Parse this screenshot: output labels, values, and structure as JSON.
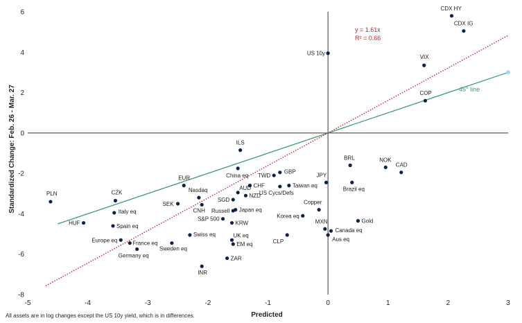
{
  "chart_data": {
    "type": "scatter",
    "title": "",
    "xlabel": "Predicted",
    "ylabel": "Standardized Change: Feb. 26 - Mar. 27",
    "xlim": [
      -5,
      3
    ],
    "ylim": [
      -8,
      6
    ],
    "xticks": [
      -5,
      -4,
      -3,
      -2,
      -1,
      0,
      1,
      2,
      3
    ],
    "yticks": [
      -8,
      -6,
      -4,
      -2,
      0,
      2,
      4,
      6
    ],
    "grid": false,
    "point_color": "#0b2346",
    "points": [
      {
        "label": "CDX HY",
        "x": 2.06,
        "y": 5.8
      },
      {
        "label": "CDX IG",
        "x": 2.26,
        "y": 5.05
      },
      {
        "label": "US 10y",
        "x": 0.0,
        "y": 3.95
      },
      {
        "label": "VIX",
        "x": 1.6,
        "y": 3.35
      },
      {
        "label": "COP",
        "x": 1.62,
        "y": 1.6
      },
      {
        "label": "ILS",
        "x": -1.46,
        "y": -0.85
      },
      {
        "label": "China eq",
        "x": -1.5,
        "y": -1.75
      },
      {
        "label": "BRL",
        "x": 0.37,
        "y": -1.6
      },
      {
        "label": "NOK",
        "x": 0.96,
        "y": -1.7
      },
      {
        "label": "CAD",
        "x": 1.22,
        "y": -1.95
      },
      {
        "label": "GBP",
        "x": -0.8,
        "y": -1.95
      },
      {
        "label": "TWD",
        "x": -0.9,
        "y": -2.1
      },
      {
        "label": "JPY",
        "x": -0.03,
        "y": -2.45
      },
      {
        "label": "Brazil eq",
        "x": 0.4,
        "y": -2.45
      },
      {
        "label": "EUR",
        "x": -2.4,
        "y": -2.6
      },
      {
        "label": "CHF",
        "x": -1.3,
        "y": -2.6
      },
      {
        "label": "Taiwan eq",
        "x": -0.65,
        "y": -2.6
      },
      {
        "label": "US Cycs/Defs",
        "x": -0.8,
        "y": -2.65
      },
      {
        "label": "AUD",
        "x": -1.5,
        "y": -2.95
      },
      {
        "label": "Nasdaq",
        "x": -2.15,
        "y": -3.2
      },
      {
        "label": "SGD",
        "x": -1.58,
        "y": -3.3
      },
      {
        "label": "NZD",
        "x": -1.37,
        "y": -3.1
      },
      {
        "label": "PLN",
        "x": -4.62,
        "y": -3.4
      },
      {
        "label": "CZK",
        "x": -3.54,
        "y": -3.35
      },
      {
        "label": "SEK",
        "x": -2.5,
        "y": -3.5
      },
      {
        "label": "CNH",
        "x": -2.1,
        "y": -3.55
      },
      {
        "label": "Russell",
        "x": -1.58,
        "y": -3.85
      },
      {
        "label": "Japan eq",
        "x": -1.54,
        "y": -3.8
      },
      {
        "label": "Copper",
        "x": -0.15,
        "y": -3.8
      },
      {
        "label": "Italy eq",
        "x": -3.56,
        "y": -3.95
      },
      {
        "label": "Korea eq",
        "x": -0.42,
        "y": -4.1
      },
      {
        "label": "S&P 500",
        "x": -1.75,
        "y": -4.25
      },
      {
        "label": "KRW",
        "x": -1.6,
        "y": -4.45
      },
      {
        "label": "Gold",
        "x": 0.5,
        "y": -4.35
      },
      {
        "label": "HUF",
        "x": -4.07,
        "y": -4.45
      },
      {
        "label": "Spain eq",
        "x": -3.58,
        "y": -4.6
      },
      {
        "label": "MXN",
        "x": -0.05,
        "y": -4.75
      },
      {
        "label": "Canada eq",
        "x": 0.05,
        "y": -4.85
      },
      {
        "label": "Swiss eq",
        "x": -2.3,
        "y": -5.05
      },
      {
        "label": "CLP",
        "x": -0.68,
        "y": -5.05
      },
      {
        "label": "Aus eq",
        "x": 0.0,
        "y": -5.05
      },
      {
        "label": "UK eq",
        "x": -1.6,
        "y": -5.3
      },
      {
        "label": "Europe eq",
        "x": -3.45,
        "y": -5.3
      },
      {
        "label": "France eq",
        "x": -3.3,
        "y": -5.45
      },
      {
        "label": "EM eq",
        "x": -1.58,
        "y": -5.5
      },
      {
        "label": "Sweden eq",
        "x": -2.6,
        "y": -5.45
      },
      {
        "label": "Germany eq",
        "x": -3.18,
        "y": -5.75
      },
      {
        "label": "ZAR",
        "x": -1.68,
        "y": -6.2
      },
      {
        "label": "INR",
        "x": -2.1,
        "y": -6.6
      }
    ],
    "lines": [
      {
        "name": "45° line",
        "label": "45° line",
        "slope": 1.0,
        "intercept": 0,
        "x_range": [
          -4.5,
          3.0
        ],
        "color": "#3a9a6e",
        "style": "solid"
      },
      {
        "name": "regression",
        "slope": 1.61,
        "intercept": 0,
        "x_range": [
          -4.7,
          3.0
        ],
        "color": "#c0282d",
        "style": "dotted"
      }
    ],
    "regression_equation": "y = 1.61x",
    "r_squared": "R² = 0.66"
  },
  "footnote": "All assets are in log changes except the US 10y yield, which is in differences."
}
